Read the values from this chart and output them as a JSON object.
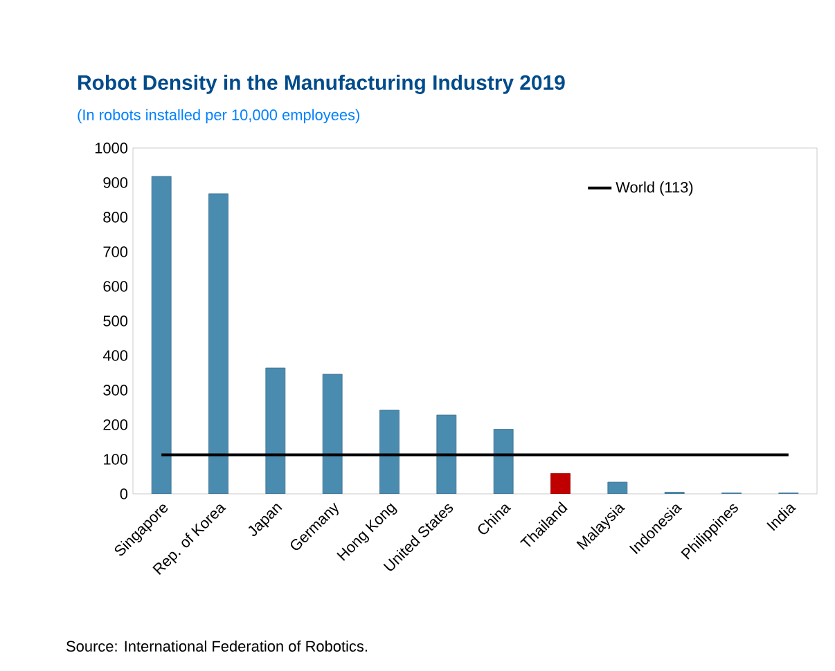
{
  "chart_data": {
    "type": "bar",
    "title": "Robot Density in the Manufacturing Industry 2019",
    "subtitle": "(In robots installed per 10,000 employees)",
    "categories": [
      "Singapore",
      "Rep. of Korea",
      "Japan",
      "Germany",
      "Hong Kong",
      "United States",
      "China",
      "Thailand",
      "Malaysia",
      "Indonesia",
      "Philippines",
      "India"
    ],
    "values": [
      918,
      868,
      364,
      346,
      242,
      228,
      187,
      59,
      34,
      5,
      3,
      3
    ],
    "colors": [
      "#4a8bb0",
      "#4a8bb0",
      "#4a8bb0",
      "#4a8bb0",
      "#4a8bb0",
      "#4a8bb0",
      "#4a8bb0",
      "#c00000",
      "#4a8bb0",
      "#4a8bb0",
      "#4a8bb0",
      "#4a8bb0"
    ],
    "ylim": [
      0,
      1000
    ],
    "yticks": [
      0,
      100,
      200,
      300,
      400,
      500,
      600,
      700,
      800,
      900,
      1000
    ],
    "ref_lines": [
      {
        "axis": "y",
        "value": 113,
        "label": "World (113)",
        "color": "#000000"
      }
    ],
    "legend": "top right",
    "grid": false,
    "annotations": [
      "Source: International Federation of Robotics."
    ]
  }
}
